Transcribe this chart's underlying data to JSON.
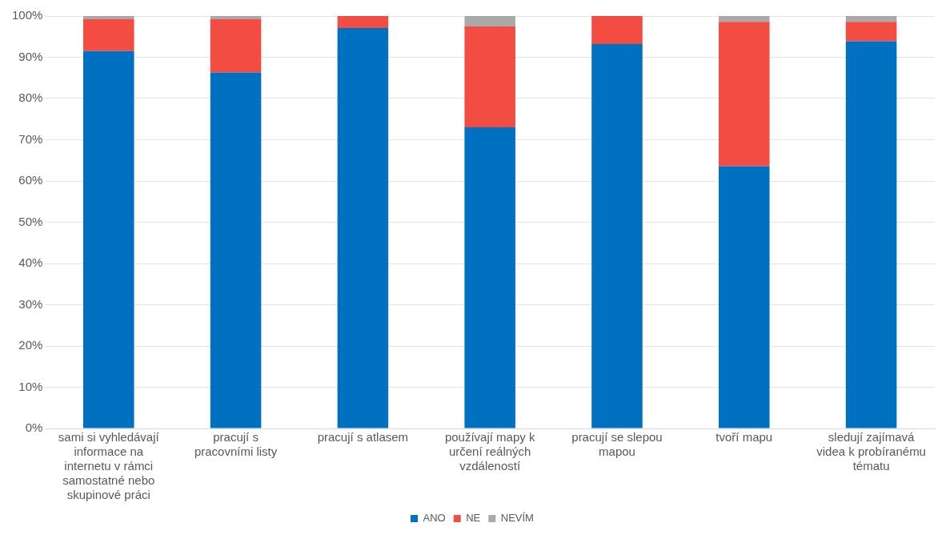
{
  "chart_data": {
    "type": "bar",
    "stacked": true,
    "categories": [
      "sami si vyhledávají informace na internetu v rámci samostatné nebo skupinové práci",
      "pracují s pracovními listy",
      "pracují s atlasem",
      "používají mapy k určení reálných vzdáleností",
      "pracují se slepou mapou",
      "tvoří mapu",
      "sledují zajímavá videa k probíranému tématu"
    ],
    "series": [
      {
        "name": "ANO",
        "color": "#0070c0",
        "values": [
          91.5,
          86.3,
          97.1,
          73,
          93.2,
          63.6,
          93.9
        ]
      },
      {
        "name": "NE",
        "color": "#f24c43",
        "values": [
          7.7,
          12.9,
          2.9,
          24.5,
          6.8,
          35,
          4.7
        ]
      },
      {
        "name": "NEVÍM",
        "color": "#a9a9a9",
        "values": [
          0.8,
          0.8,
          0,
          2.5,
          0,
          1.4,
          1.4
        ]
      }
    ],
    "ylim": [
      0,
      100
    ],
    "yticks": [
      {
        "value": 0,
        "label": "0%"
      },
      {
        "value": 10,
        "label": "10%"
      },
      {
        "value": 20,
        "label": "20%"
      },
      {
        "value": 30,
        "label": "30%"
      },
      {
        "value": 40,
        "label": "40%"
      },
      {
        "value": 50,
        "label": "50%"
      },
      {
        "value": 60,
        "label": "60%"
      },
      {
        "value": 70,
        "label": "70%"
      },
      {
        "value": 80,
        "label": "80%"
      },
      {
        "value": 90,
        "label": "90%"
      },
      {
        "value": 100,
        "label": "100%"
      }
    ],
    "grid": "y",
    "legend": "bottom"
  }
}
